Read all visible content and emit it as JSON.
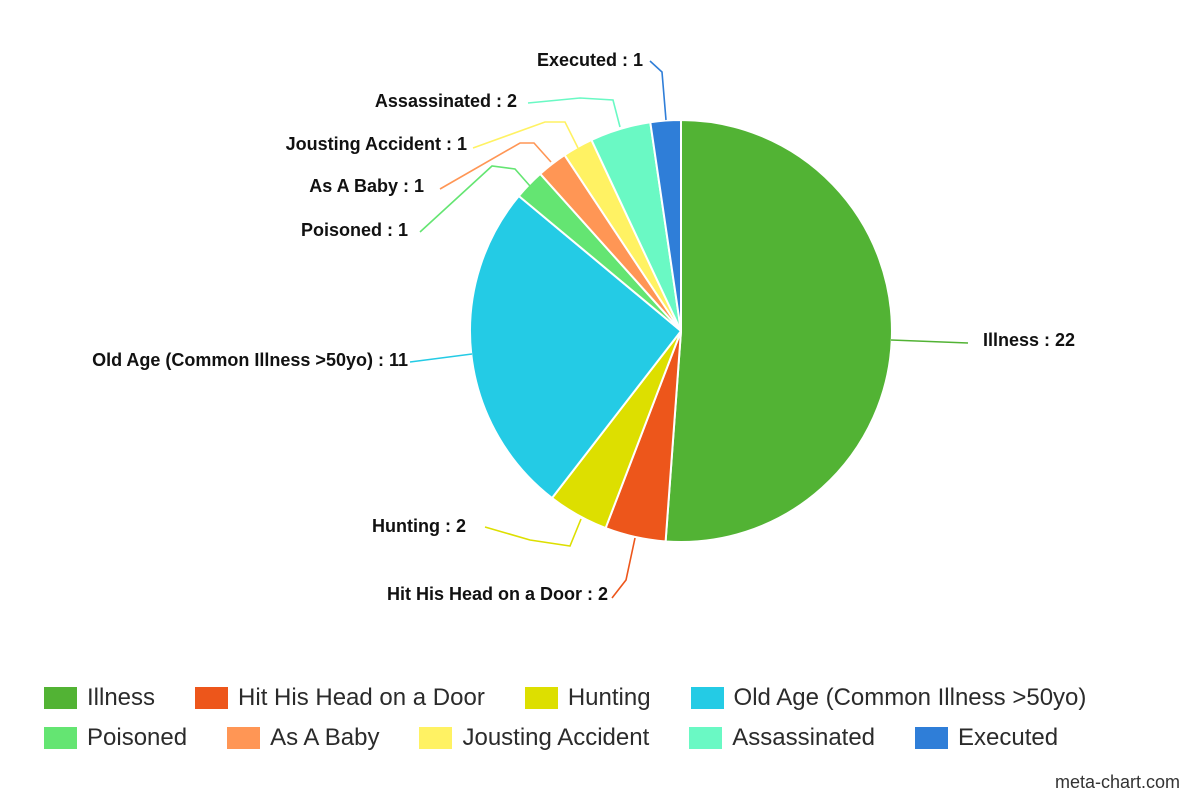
{
  "chart_data": {
    "type": "pie",
    "title": "",
    "categories": [
      "Illness",
      "Hit His Head on a Door",
      "Hunting",
      "Old Age (Common Illness >50yo)",
      "Poisoned",
      "As A Baby",
      "Jousting Accident",
      "Assassinated",
      "Executed"
    ],
    "values": [
      22,
      2,
      2,
      11,
      1,
      1,
      1,
      2,
      1
    ],
    "colors": [
      "#52b334",
      "#ed561b",
      "#dddf00",
      "#24cbe5",
      "#64e572",
      "#ff9655",
      "#fff263",
      "#6af9c4",
      "#2f7ed8"
    ],
    "data_labels": [
      "Illness : 22",
      "Hit His Head on a Door : 2",
      "Hunting : 2",
      "Old Age (Common Illness >50yo) : 11",
      "Poisoned : 1",
      "As A Baby : 1",
      "Jousting Accident : 1",
      "Assassinated : 2",
      "Executed : 1"
    ],
    "legend_placement": "bottom"
  },
  "credit": "meta-chart.com"
}
